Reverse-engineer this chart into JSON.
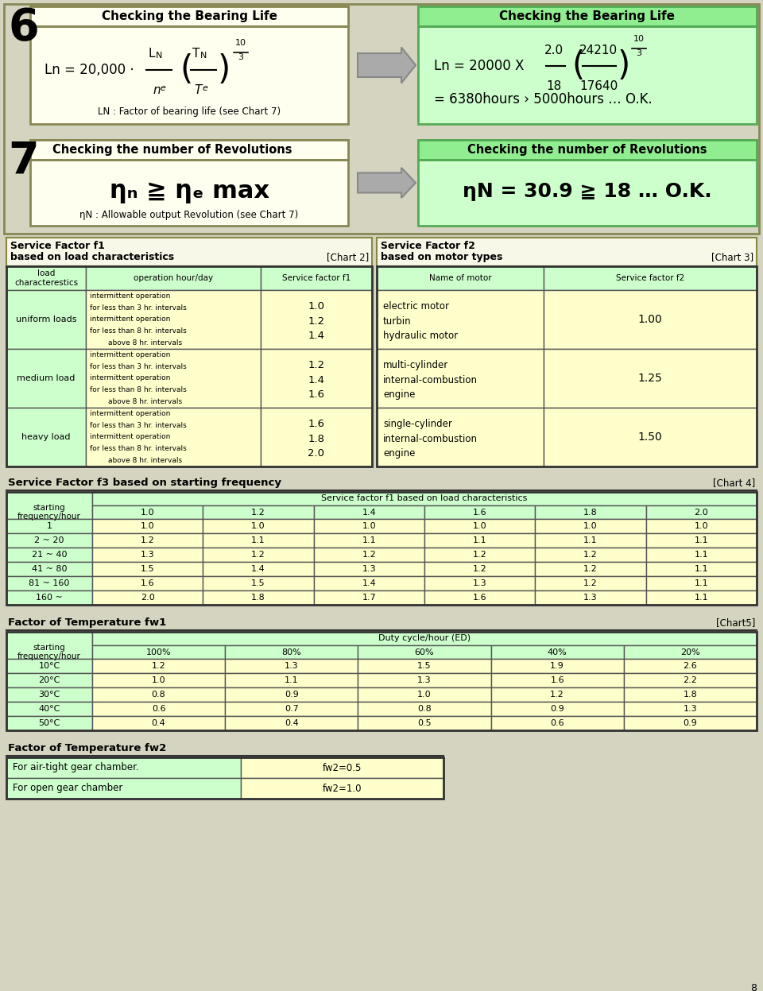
{
  "page_bg": "#d4d4c0",
  "light_green": "#ccffcc",
  "green_header": "#90ee90",
  "light_yellow": "#ffffee",
  "yellow_bg": "#ffffcc",
  "chart2_title1": "Service Factor f1",
  "chart2_title2": "based on load characteristics",
  "chart2_tag": "[Chart 2]",
  "chart3_title1": "Service Factor f2",
  "chart3_title2": "based on motor types",
  "chart3_tag": "[Chart 3]",
  "chart4_title": "Service Factor f3 based on starting frequency",
  "chart4_tag": "[Chart 4]",
  "chart4_subheaders": [
    "1.0",
    "1.2",
    "1.4",
    "1.6",
    "1.8",
    "2.0"
  ],
  "chart4_data": [
    [
      "1",
      "1.0",
      "1.0",
      "1.0",
      "1.0",
      "1.0",
      "1.0"
    ],
    [
      "2 ~ 20",
      "1.2",
      "1.1",
      "1.1",
      "1.1",
      "1.1",
      "1.1"
    ],
    [
      "21 ~ 40",
      "1.3",
      "1.2",
      "1.2",
      "1.2",
      "1.2",
      "1.1"
    ],
    [
      "41 ~ 80",
      "1.5",
      "1.4",
      "1.3",
      "1.2",
      "1.2",
      "1.1"
    ],
    [
      "81 ~ 160",
      "1.6",
      "1.5",
      "1.4",
      "1.3",
      "1.2",
      "1.1"
    ],
    [
      "160 ~",
      "2.0",
      "1.8",
      "1.7",
      "1.6",
      "1.3",
      "1.1"
    ]
  ],
  "chart5_title": "Factor of Temperature fw1",
  "chart5_tag": "[Chart5]",
  "chart5_subheaders": [
    "100%",
    "80%",
    "60%",
    "40%",
    "20%"
  ],
  "chart5_data": [
    [
      "10°C",
      "1.2",
      "1.3",
      "1.5",
      "1.9",
      "2.6"
    ],
    [
      "20°C",
      "1.0",
      "1.1",
      "1.3",
      "1.6",
      "2.2"
    ],
    [
      "30°C",
      "0.8",
      "0.9",
      "1.0",
      "1.2",
      "1.8"
    ],
    [
      "40°C",
      "0.6",
      "0.7",
      "0.8",
      "0.9",
      "1.3"
    ],
    [
      "50°C",
      "0.4",
      "0.4",
      "0.5",
      "0.6",
      "0.9"
    ]
  ],
  "fw2_title": "Factor of Temperature fw2",
  "fw2_data": [
    [
      "For air-tight gear chamber.",
      "fw2=0.5"
    ],
    [
      "For open gear chamber",
      "fw2=1.0"
    ]
  ]
}
